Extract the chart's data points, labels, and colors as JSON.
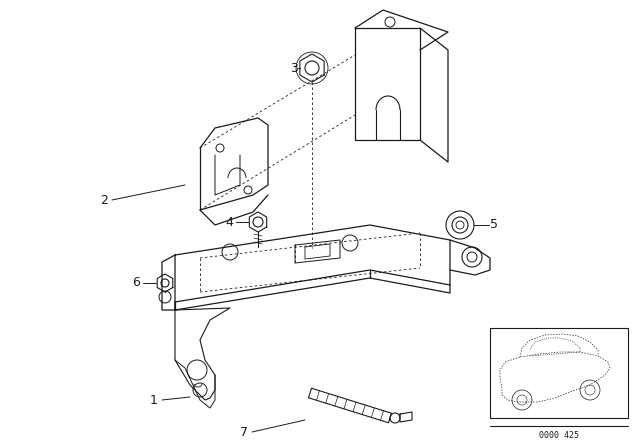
{
  "background_color": "#ffffff",
  "line_color": "#1a1a1a",
  "car_label": "0000 425",
  "parts": [
    "1",
    "2",
    "3",
    "4",
    "5",
    "6",
    "7"
  ]
}
